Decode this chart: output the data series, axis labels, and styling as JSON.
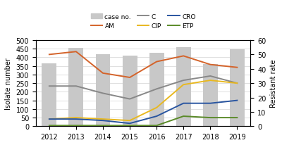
{
  "years": [
    2012,
    2013,
    2014,
    2015,
    2016,
    2017,
    2018,
    2019
  ],
  "case_no": [
    365,
    455,
    420,
    410,
    425,
    460,
    360,
    445
  ],
  "AM": [
    50,
    52,
    37,
    34,
    45,
    49,
    43,
    41
  ],
  "C": [
    28,
    28,
    23,
    19,
    26,
    32,
    35,
    30
  ],
  "CIP": [
    5,
    6,
    5,
    4,
    13,
    29,
    32,
    30
  ],
  "CRO": [
    5,
    5,
    4,
    2,
    7,
    16,
    16,
    18
  ],
  "ETP": [
    0.5,
    0.5,
    0.5,
    0.5,
    0.5,
    7,
    6,
    6
  ],
  "bar_color": "#c8c8c8",
  "AM_color": "#d4632a",
  "C_color": "#888888",
  "CIP_color": "#e8b820",
  "CRO_color": "#2955a0",
  "ETP_color": "#5a8a28",
  "left_ylim": [
    0,
    500
  ],
  "right_ylim": [
    0,
    60
  ],
  "left_yticks": [
    0,
    50,
    100,
    150,
    200,
    250,
    300,
    350,
    400,
    450,
    500
  ],
  "right_yticks": [
    0,
    10,
    20,
    30,
    40,
    50,
    60
  ],
  "ylabel_left": "Isolate number",
  "ylabel_right": "Resistant rate",
  "bar_width": 0.55
}
